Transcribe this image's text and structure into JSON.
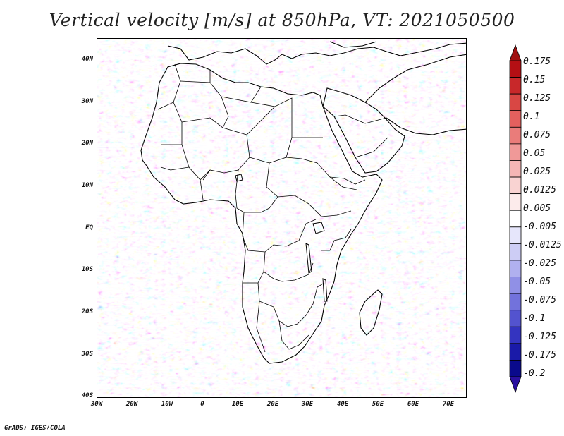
{
  "title": "Vertical velocity [m/s] at 850hPa, VT: 2021050500",
  "footer": "GrADS: IGES/COLA",
  "map": {
    "lat_labels": [
      "40N",
      "30N",
      "20N",
      "10N",
      "EQ",
      "10S",
      "20S",
      "30S",
      "40S"
    ],
    "lon_labels": [
      "30W",
      "20W",
      "10W",
      "0",
      "10E",
      "20E",
      "30E",
      "40E",
      "50E",
      "60E",
      "70E"
    ],
    "lon_range": [
      -30,
      75
    ],
    "lat_range": [
      -40,
      44
    ]
  },
  "colorbar": {
    "labels": [
      "0.175",
      "0.15",
      "0.125",
      "0.1",
      "0.075",
      "0.05",
      "0.025",
      "0.0125",
      "0.005",
      "-0.005",
      "-0.0125",
      "-0.025",
      "-0.05",
      "-0.075",
      "-0.1",
      "-0.125",
      "-0.175",
      "-0.2"
    ],
    "colors": [
      "#b40f14",
      "#c8282a",
      "#d94744",
      "#e4605e",
      "#ea7c7a",
      "#f09998",
      "#f5b6b5",
      "#f9d3d2",
      "#fcebeb",
      "#ffffff",
      "#e6e6fb",
      "#cdcdf5",
      "#b0b0ef",
      "#9090e6",
      "#7272dc",
      "#5353cf",
      "#3434c0",
      "#1a1aa8",
      "#0a0a8c"
    ]
  }
}
